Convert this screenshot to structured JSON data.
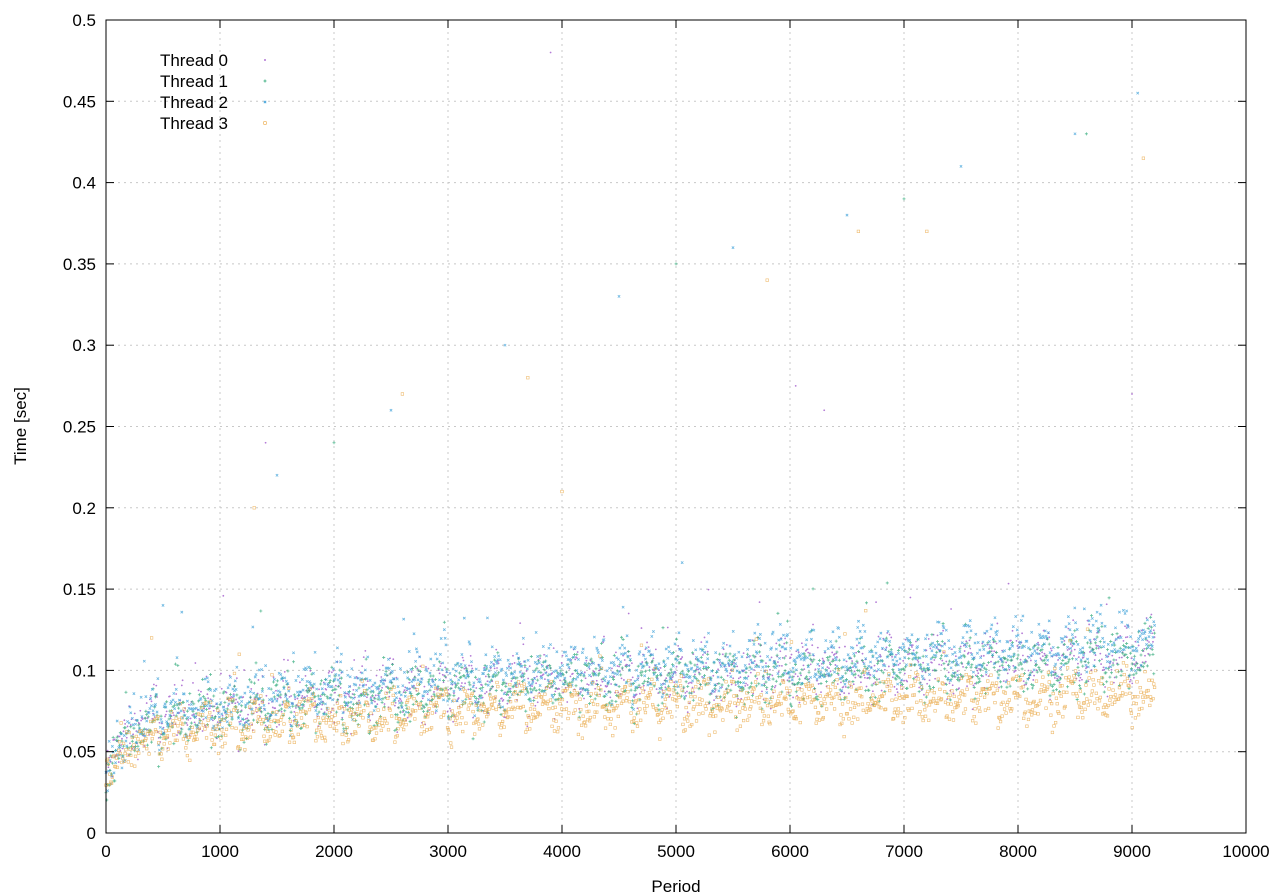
{
  "chart_data": {
    "type": "scatter",
    "title": "",
    "xlabel": "Period",
    "ylabel": "Time [sec]",
    "xlim": [
      0,
      10000
    ],
    "ylim": [
      0,
      0.5
    ],
    "xticks": [
      "0",
      "1000",
      "2000",
      "3000",
      "4000",
      "5000",
      "6000",
      "7000",
      "8000",
      "9000",
      "10000"
    ],
    "yticks": [
      "0",
      "0.05",
      "0.1",
      "0.15",
      "0.2",
      "0.25",
      "0.3",
      "0.35",
      "0.4",
      "0.45",
      "0.5"
    ],
    "grid": true,
    "legend_position": "top-left",
    "series": [
      {
        "name": "Thread 0",
        "color": "#9b4fc9",
        "marker": "dot",
        "x": [
          0,
          100,
          200,
          300,
          500,
          750,
          1000,
          1500,
          2000,
          2500,
          3000,
          3500,
          4000,
          4500,
          5000,
          5500,
          6000,
          6500,
          7000,
          7500,
          8000,
          8500,
          9000,
          9200
        ],
        "y": [
          0.036,
          0.052,
          0.06,
          0.064,
          0.068,
          0.071,
          0.073,
          0.078,
          0.082,
          0.084,
          0.087,
          0.089,
          0.091,
          0.092,
          0.094,
          0.095,
          0.097,
          0.098,
          0.1,
          0.101,
          0.103,
          0.104,
          0.106,
          0.107
        ],
        "outliers": {
          "x": [
            3900,
            1400,
            6050,
            6300,
            9000
          ],
          "y": [
            0.48,
            0.24,
            0.275,
            0.26,
            0.27
          ]
        }
      },
      {
        "name": "Thread 1",
        "color": "#2aa876",
        "marker": "plus",
        "x": [
          0,
          100,
          200,
          300,
          500,
          750,
          1000,
          1500,
          2000,
          2500,
          3000,
          3500,
          4000,
          4500,
          5000,
          5500,
          6000,
          6500,
          7000,
          7500,
          8000,
          8500,
          9000,
          9200
        ],
        "y": [
          0.035,
          0.05,
          0.058,
          0.062,
          0.066,
          0.069,
          0.071,
          0.076,
          0.08,
          0.082,
          0.085,
          0.087,
          0.089,
          0.09,
          0.092,
          0.093,
          0.095,
          0.096,
          0.098,
          0.099,
          0.101,
          0.102,
          0.104,
          0.105
        ],
        "outliers": {
          "x": [
            2000,
            5000,
            7000,
            8600
          ],
          "y": [
            0.24,
            0.35,
            0.39,
            0.43
          ]
        }
      },
      {
        "name": "Thread 2",
        "color": "#3a9fd8",
        "marker": "cross",
        "x": [
          0,
          100,
          200,
          300,
          500,
          750,
          1000,
          1500,
          2000,
          2500,
          3000,
          3500,
          4000,
          4500,
          5000,
          5500,
          6000,
          6500,
          7000,
          7500,
          8000,
          8500,
          9000,
          9200
        ],
        "y": [
          0.037,
          0.054,
          0.062,
          0.066,
          0.07,
          0.073,
          0.076,
          0.081,
          0.086,
          0.089,
          0.092,
          0.094,
          0.096,
          0.098,
          0.1,
          0.102,
          0.104,
          0.106,
          0.108,
          0.109,
          0.111,
          0.113,
          0.115,
          0.116
        ],
        "outliers": {
          "x": [
            500,
            1500,
            2500,
            3500,
            4500,
            5500,
            6500,
            7500,
            8500,
            9050
          ],
          "y": [
            0.14,
            0.22,
            0.26,
            0.3,
            0.33,
            0.36,
            0.38,
            0.41,
            0.43,
            0.455
          ]
        }
      },
      {
        "name": "Thread 3",
        "color": "#e8a33c",
        "marker": "square",
        "x": [
          0,
          100,
          200,
          300,
          500,
          750,
          1000,
          1500,
          2000,
          2500,
          3000,
          3500,
          4000,
          4500,
          5000,
          5500,
          6000,
          6500,
          7000,
          7500,
          8000,
          8500,
          9000,
          9200
        ],
        "y": [
          0.034,
          0.047,
          0.053,
          0.056,
          0.059,
          0.061,
          0.063,
          0.066,
          0.069,
          0.07,
          0.072,
          0.073,
          0.074,
          0.075,
          0.076,
          0.077,
          0.078,
          0.078,
          0.079,
          0.08,
          0.081,
          0.081,
          0.082,
          0.083
        ],
        "outliers": {
          "x": [
            400,
            1300,
            2600,
            3700,
            4000,
            5800,
            6600,
            7200,
            9100
          ],
          "y": [
            0.12,
            0.2,
            0.27,
            0.28,
            0.21,
            0.34,
            0.37,
            0.37,
            0.415
          ]
        }
      }
    ]
  }
}
